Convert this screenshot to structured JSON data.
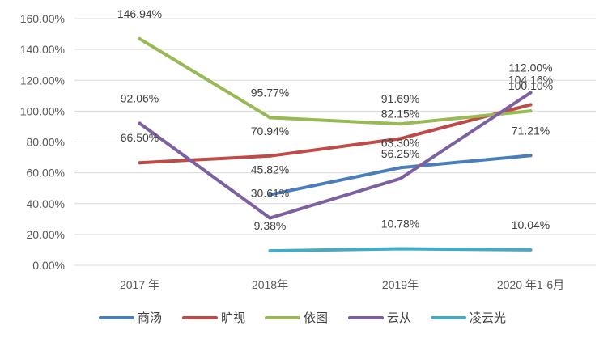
{
  "chart_data": {
    "type": "line",
    "title": "",
    "xlabel": "",
    "ylabel": "",
    "categories": [
      "2017 年",
      "2018年",
      "2019年",
      "2020 年1-6月"
    ],
    "ylim": [
      0,
      160
    ],
    "y_ticks": [
      0,
      20,
      40,
      60,
      80,
      100,
      120,
      140,
      160
    ],
    "y_tick_labels": [
      "0.00%",
      "20.00%",
      "40.00%",
      "60.00%",
      "80.00%",
      "100.00%",
      "120.00%",
      "140.00%",
      "160.00%"
    ],
    "grid": true,
    "legend_position": "bottom",
    "series": [
      {
        "name": "商汤",
        "color": "#4a7ebb",
        "values": [
          null,
          45.82,
          63.3,
          71.21
        ],
        "labels": [
          null,
          "45.82%",
          "63.30%",
          "71.21%"
        ]
      },
      {
        "name": "旷视",
        "color": "#be4b48",
        "values": [
          66.5,
          70.94,
          82.15,
          104.16
        ],
        "labels": [
          "66.50%",
          "70.94%",
          "82.15%",
          "104.16%"
        ]
      },
      {
        "name": "依图",
        "color": "#98b954",
        "values": [
          146.94,
          95.77,
          91.69,
          100.1
        ],
        "labels": [
          "146.94%",
          "95.77%",
          "91.69%",
          "100.10%"
        ]
      },
      {
        "name": "云从",
        "color": "#7d60a0",
        "values": [
          92.06,
          30.61,
          56.25,
          112.0
        ],
        "labels": [
          "92.06%",
          "30.61%",
          "56.25%",
          "112.00%"
        ]
      },
      {
        "name": "凌云光",
        "color": "#46aac5",
        "values": [
          null,
          9.38,
          10.78,
          10.04
        ],
        "labels": [
          null,
          "9.38%",
          "10.78%",
          "10.04%"
        ]
      }
    ]
  }
}
